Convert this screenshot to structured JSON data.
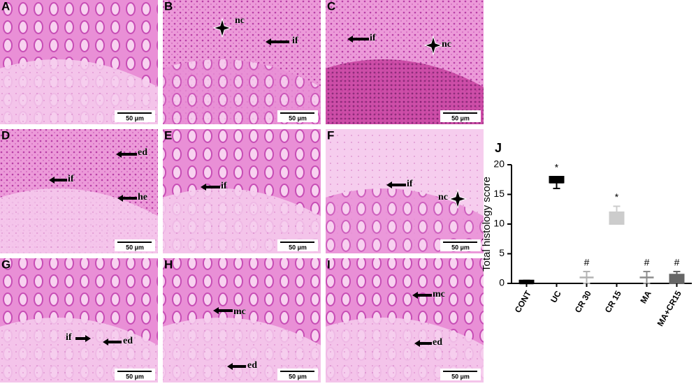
{
  "panels": [
    {
      "letter": "A",
      "scale": "50 µm",
      "labels": []
    },
    {
      "letter": "B",
      "scale": "50 µm",
      "labels": [
        "nc",
        "if"
      ]
    },
    {
      "letter": "C",
      "scale": "50 µm",
      "labels": [
        "if",
        "nc"
      ]
    },
    {
      "letter": "D",
      "scale": "50 µm",
      "labels": [
        "ed",
        "if",
        "he"
      ]
    },
    {
      "letter": "E",
      "scale": "50 µm",
      "labels": [
        "if"
      ]
    },
    {
      "letter": "F",
      "scale": "50 µm",
      "labels": [
        "if",
        "nc"
      ]
    },
    {
      "letter": "G",
      "scale": "50 µm",
      "labels": [
        "if",
        "ed"
      ]
    },
    {
      "letter": "H",
      "scale": "50 µm",
      "labels": [
        "mc",
        "ed"
      ]
    },
    {
      "letter": "I",
      "scale": "50 µm",
      "labels": [
        "mc",
        "ed"
      ]
    }
  ],
  "chart_data": {
    "type": "box",
    "title": "J",
    "ylabel": "Total histology score",
    "categories": [
      "CONT",
      "UC",
      "CR 30",
      "CR 15",
      "MA",
      "MA+CR15"
    ],
    "min": [
      0,
      16,
      0,
      10,
      0,
      0
    ],
    "q1": [
      0,
      17,
      1,
      10,
      1,
      0
    ],
    "median": [
      0,
      17,
      1,
      11,
      1,
      1
    ],
    "q3": [
      0.5,
      18,
      1,
      12,
      1,
      1.5
    ],
    "max": [
      0.5,
      18,
      2,
      13,
      2,
      2
    ],
    "colors": [
      "#000000",
      "#000000",
      "#b3b3b3",
      "#cccccc",
      "#8c8c8c",
      "#666666"
    ],
    "markers": [
      null,
      "*",
      "#",
      "*",
      "#",
      "#"
    ],
    "ylim": [
      0,
      20
    ],
    "yticks": [
      0,
      5,
      10,
      15,
      20
    ]
  }
}
